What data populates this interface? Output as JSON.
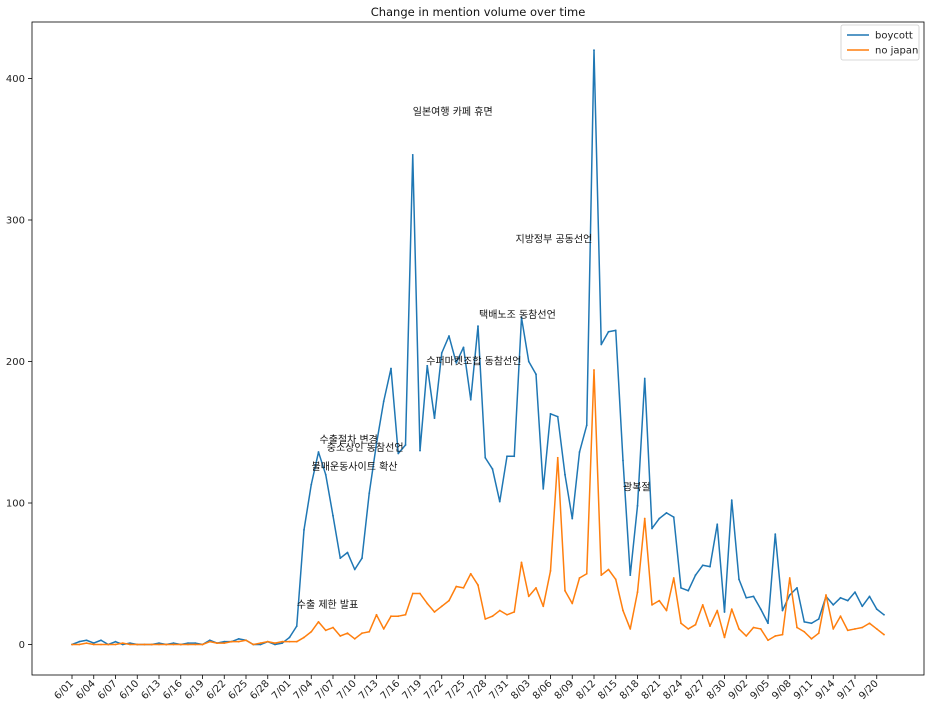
{
  "chart_data": {
    "type": "line",
    "title": "Change in mention volume over time",
    "xlabel": "",
    "ylabel": "",
    "ylim": [
      -22,
      442
    ],
    "yticks": [
      0,
      100,
      200,
      300,
      400
    ],
    "legend": "top-right",
    "grid": false,
    "x_start": "2019-06-01",
    "xticks": [
      "6/01",
      "6/04",
      "6/07",
      "6/10",
      "6/13",
      "6/16",
      "6/19",
      "6/22",
      "6/25",
      "6/28",
      "7/01",
      "7/04",
      "7/07",
      "7/10",
      "7/13",
      "7/16",
      "7/19",
      "7/22",
      "7/25",
      "7/28",
      "7/31",
      "8/03",
      "8/06",
      "8/09",
      "8/12",
      "8/15",
      "8/18",
      "8/21",
      "8/24",
      "8/27",
      "8/30",
      "9/02",
      "9/05",
      "9/08",
      "9/11",
      "9/14",
      "9/17",
      "9/20"
    ],
    "series": [
      {
        "name": "boycott",
        "color": "#1f77b4",
        "values": [
          0,
          2,
          3,
          1,
          3,
          0,
          2,
          0,
          1,
          0,
          0,
          0,
          1,
          0,
          1,
          0,
          1,
          1,
          0,
          3,
          1,
          2,
          2,
          4,
          3,
          0,
          0,
          2,
          0,
          1,
          5,
          13,
          81,
          113,
          136,
          120,
          91,
          61,
          65,
          53,
          61,
          107,
          142,
          172,
          195,
          135,
          141,
          346,
          137,
          197,
          160,
          206,
          218,
          199,
          210,
          173,
          225,
          132,
          124,
          101,
          133,
          133,
          231,
          200,
          191,
          110,
          163,
          161,
          120,
          89,
          136,
          155,
          420,
          212,
          221,
          222,
          130,
          49,
          98,
          188,
          82,
          89,
          93,
          90,
          40,
          38,
          49,
          56,
          55,
          85,
          23,
          102,
          46,
          33,
          34,
          25,
          15,
          78,
          24,
          35,
          40,
          16,
          15,
          18,
          34,
          28,
          33,
          31,
          37,
          27,
          34,
          25,
          21
        ],
        "annotations": [
          {
            "index": 31,
            "text": "수출 제한 발표"
          },
          {
            "index": 34,
            "text": "수출절차 변경"
          },
          {
            "index": 35,
            "text": "중소상인 동참선언"
          },
          {
            "index": 34,
            "text": "불매운동사이트 확산"
          },
          {
            "index": 47,
            "text": "일본여행 카페 휴면"
          },
          {
            "index": 49,
            "text": "수퍼마켓조합 동참선언"
          },
          {
            "index": 56,
            "text": "택배노조 동참선언"
          },
          {
            "index": 62,
            "text": "지방정부 공동선언"
          },
          {
            "index": 76,
            "text": "광복절"
          }
        ]
      },
      {
        "name": "no japan",
        "color": "#ff7f0e",
        "values": [
          0,
          0,
          1,
          0,
          0,
          0,
          0,
          1,
          0,
          0,
          0,
          0,
          0,
          0,
          0,
          0,
          0,
          0,
          0,
          2,
          1,
          1,
          2,
          2,
          3,
          0,
          1,
          2,
          1,
          2,
          2,
          2,
          5,
          9,
          16,
          10,
          12,
          6,
          8,
          4,
          8,
          9,
          21,
          11,
          20,
          20,
          21,
          36,
          36,
          29,
          23,
          27,
          31,
          41,
          40,
          50,
          42,
          18,
          20,
          24,
          21,
          23,
          58,
          34,
          40,
          27,
          52,
          132,
          38,
          29,
          47,
          50,
          194,
          49,
          53,
          46,
          24,
          11,
          37,
          89,
          28,
          31,
          24,
          47,
          15,
          11,
          14,
          28,
          13,
          24,
          5,
          25,
          11,
          6,
          12,
          11,
          3,
          6,
          7,
          47,
          12,
          9,
          4,
          8,
          35,
          11,
          20,
          10,
          11,
          12,
          15,
          11,
          7
        ]
      }
    ]
  }
}
